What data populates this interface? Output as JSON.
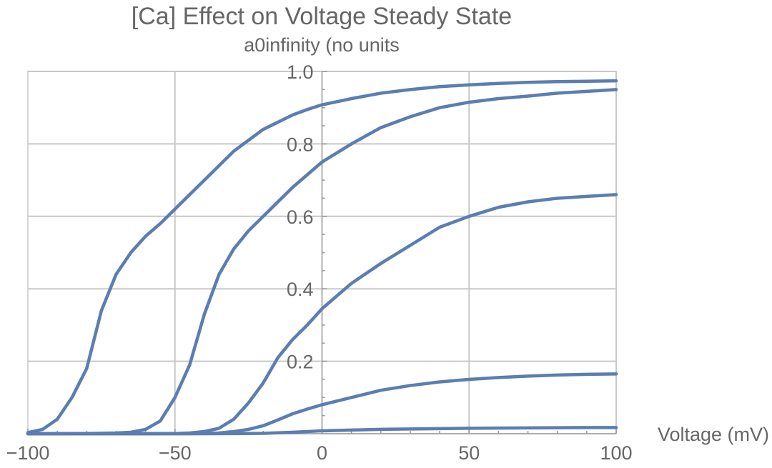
{
  "chart_data": {
    "type": "line",
    "title": "[Ca] Effect on Voltage Steady State",
    "subtitle": "a0infinity (no units",
    "xlabel": "Voltage (mV)",
    "ylabel": "",
    "xlim": [
      -100,
      100
    ],
    "ylim": [
      0,
      1.0
    ],
    "x_ticks": [
      -100,
      -50,
      0,
      50,
      100
    ],
    "x_tick_labels": [
      "−100",
      "−50",
      "0",
      "50",
      "100"
    ],
    "y_ticks": [
      0.2,
      0.4,
      0.6,
      0.8,
      1.0
    ],
    "y_tick_labels": [
      "0.2",
      "0.4",
      "0.6",
      "0.8",
      "1.0"
    ],
    "grid": true,
    "line_color": "#5b7db1",
    "series": [
      {
        "x": [
          -100,
          -95,
          -90,
          -85,
          -80,
          -75,
          -70,
          -65,
          -60,
          -55,
          -50,
          -45,
          -40,
          -35,
          -30,
          -25,
          -20,
          -15,
          -10,
          -5,
          0,
          10,
          20,
          30,
          40,
          50,
          60,
          70,
          80,
          90,
          100
        ],
        "values": [
          0.003,
          0.012,
          0.04,
          0.1,
          0.18,
          0.34,
          0.44,
          0.5,
          0.545,
          0.58,
          0.62,
          0.66,
          0.7,
          0.74,
          0.78,
          0.81,
          0.84,
          0.86,
          0.88,
          0.895,
          0.908,
          0.925,
          0.94,
          0.95,
          0.958,
          0.963,
          0.967,
          0.97,
          0.972,
          0.973,
          0.974
        ]
      },
      {
        "x": [
          -100,
          -80,
          -70,
          -65,
          -60,
          -55,
          -50,
          -45,
          -40,
          -35,
          -30,
          -25,
          -20,
          -15,
          -10,
          -5,
          0,
          10,
          20,
          30,
          40,
          50,
          60,
          70,
          80,
          90,
          100
        ],
        "values": [
          0,
          0.0005,
          0.002,
          0.004,
          0.012,
          0.035,
          0.1,
          0.19,
          0.33,
          0.44,
          0.51,
          0.56,
          0.6,
          0.64,
          0.68,
          0.715,
          0.75,
          0.8,
          0.845,
          0.875,
          0.9,
          0.915,
          0.925,
          0.932,
          0.94,
          0.945,
          0.95
        ]
      },
      {
        "x": [
          -100,
          -60,
          -50,
          -45,
          -40,
          -35,
          -30,
          -25,
          -20,
          -15,
          -10,
          -5,
          0,
          10,
          20,
          30,
          40,
          50,
          60,
          70,
          80,
          90,
          100
        ],
        "values": [
          0,
          0,
          0.0005,
          0.002,
          0.006,
          0.015,
          0.04,
          0.085,
          0.14,
          0.21,
          0.26,
          0.3,
          0.345,
          0.415,
          0.47,
          0.52,
          0.57,
          0.6,
          0.625,
          0.64,
          0.65,
          0.655,
          0.66
        ]
      },
      {
        "x": [
          -100,
          -50,
          -40,
          -35,
          -30,
          -25,
          -20,
          -15,
          -10,
          -5,
          0,
          10,
          20,
          30,
          40,
          50,
          60,
          70,
          80,
          90,
          100
        ],
        "values": [
          0,
          0,
          0.0005,
          0.002,
          0.006,
          0.012,
          0.022,
          0.038,
          0.055,
          0.068,
          0.08,
          0.1,
          0.12,
          0.133,
          0.143,
          0.15,
          0.155,
          0.159,
          0.162,
          0.164,
          0.165
        ]
      },
      {
        "x": [
          -100,
          -40,
          -30,
          -20,
          -10,
          0,
          10,
          20,
          30,
          40,
          50,
          60,
          70,
          80,
          90,
          100
        ],
        "values": [
          0,
          0,
          0.0003,
          0.001,
          0.004,
          0.008,
          0.01,
          0.012,
          0.013,
          0.014,
          0.015,
          0.0155,
          0.016,
          0.0165,
          0.017,
          0.017
        ]
      }
    ]
  }
}
